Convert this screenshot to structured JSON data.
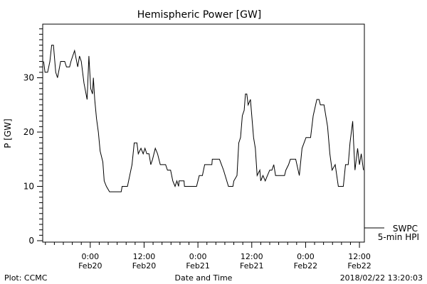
{
  "chart_data": {
    "type": "line",
    "title": "Hemispheric Power [GW]",
    "xlabel": "Date and Time",
    "ylabel": "P [GW]",
    "x_units": "hours since Feb20 0:00",
    "xlim": [
      -10.6,
      61.1
    ],
    "ylim": [
      0,
      40
    ],
    "yticks": [
      0,
      10,
      20,
      30
    ],
    "xticks": [
      {
        "x": 0,
        "line1": "0:00",
        "line2": "Feb20"
      },
      {
        "x": 12,
        "line1": "12:00",
        "line2": "Feb20"
      },
      {
        "x": 24,
        "line1": "0:00",
        "line2": "Feb21"
      },
      {
        "x": 36,
        "line1": "12:00",
        "line2": "Feb21"
      },
      {
        "x": 48,
        "line1": "0:00",
        "line2": "Feb22"
      },
      {
        "x": 60,
        "line1": "12:00",
        "line2": "Feb22"
      }
    ],
    "grid": false,
    "legend": {
      "placement": "right",
      "entries": [
        "SWPC",
        "5-min HPI"
      ]
    },
    "series": [
      {
        "name": "SWPC 5-min HPI",
        "color": "#000000",
        "x": [
          -10.4,
          -10.1,
          -9.5,
          -9.0,
          -8.6,
          -8.2,
          -7.7,
          -7.3,
          -6.6,
          -5.7,
          -5.3,
          -4.6,
          -4.3,
          -3.9,
          -3.5,
          -2.8,
          -2.4,
          -2.0,
          -1.4,
          -0.7,
          -0.3,
          0.1,
          0.5,
          0.7,
          1.0,
          1.4,
          1.8,
          2.2,
          2.8,
          3.1,
          3.6,
          4.3,
          6.9,
          7.1,
          8.3,
          8.8,
          9.3,
          9.8,
          10.4,
          10.7,
          11.3,
          11.8,
          12.2,
          12.6,
          13.1,
          13.5,
          13.9,
          14.5,
          15.0,
          15.6,
          16.8,
          17.2,
          17.9,
          18.4,
          18.9,
          19.3,
          19.7,
          19.8,
          20.9,
          21.0,
          23.7,
          24.3,
          25.0,
          25.5,
          27.1,
          27.2,
          28.8,
          29.7,
          30.8,
          31.8,
          32.0,
          32.7,
          33.1,
          33.5,
          33.9,
          34.3,
          34.6,
          34.9,
          35.2,
          35.7,
          36.4,
          36.8,
          37.2,
          37.8,
          38.0,
          38.5,
          39.0,
          39.5,
          40.0,
          40.5,
          40.9,
          41.3,
          43.3,
          43.6,
          44.2,
          44.6,
          45.8,
          46.6,
          47.2,
          48.1,
          49.1,
          49.7,
          50.5,
          51.0,
          51.3,
          52.1,
          52.9,
          53.4,
          53.9,
          54.6,
          55.3,
          56.4,
          56.9,
          57.5,
          57.9,
          58.5,
          58.7,
          59.0,
          59.6,
          60.0,
          60.4,
          60.9
        ],
        "y": [
          33,
          31,
          31,
          33,
          36,
          36,
          31,
          30,
          33,
          33,
          32,
          32,
          33,
          34,
          35,
          32,
          34,
          33,
          29,
          26,
          34,
          28,
          27,
          30,
          26,
          22.5,
          20,
          16.5,
          14.5,
          11,
          10,
          9,
          9,
          10,
          10,
          12,
          14,
          18,
          18,
          16,
          17,
          16,
          17,
          16,
          16,
          14,
          15,
          17,
          16,
          14,
          14,
          13,
          13,
          11,
          10,
          11,
          10,
          11,
          11,
          10,
          10,
          12,
          12,
          14,
          14,
          15,
          15,
          13,
          10,
          10,
          11,
          12,
          18,
          19,
          23,
          24,
          27,
          27,
          25,
          26,
          19,
          17,
          12,
          13,
          11,
          12,
          11,
          12,
          13,
          13,
          14,
          12,
          12,
          13,
          14,
          15,
          15,
          12,
          17,
          19,
          19,
          23,
          26,
          26,
          25,
          25,
          21,
          16,
          13,
          14,
          10,
          10,
          14,
          14,
          18,
          22,
          18,
          13,
          17,
          14,
          16,
          13
        ]
      }
    ]
  },
  "footer": {
    "left": "Plot: CCMC",
    "center": "Date and Time",
    "right": "2018/02/22 13:20:03"
  }
}
